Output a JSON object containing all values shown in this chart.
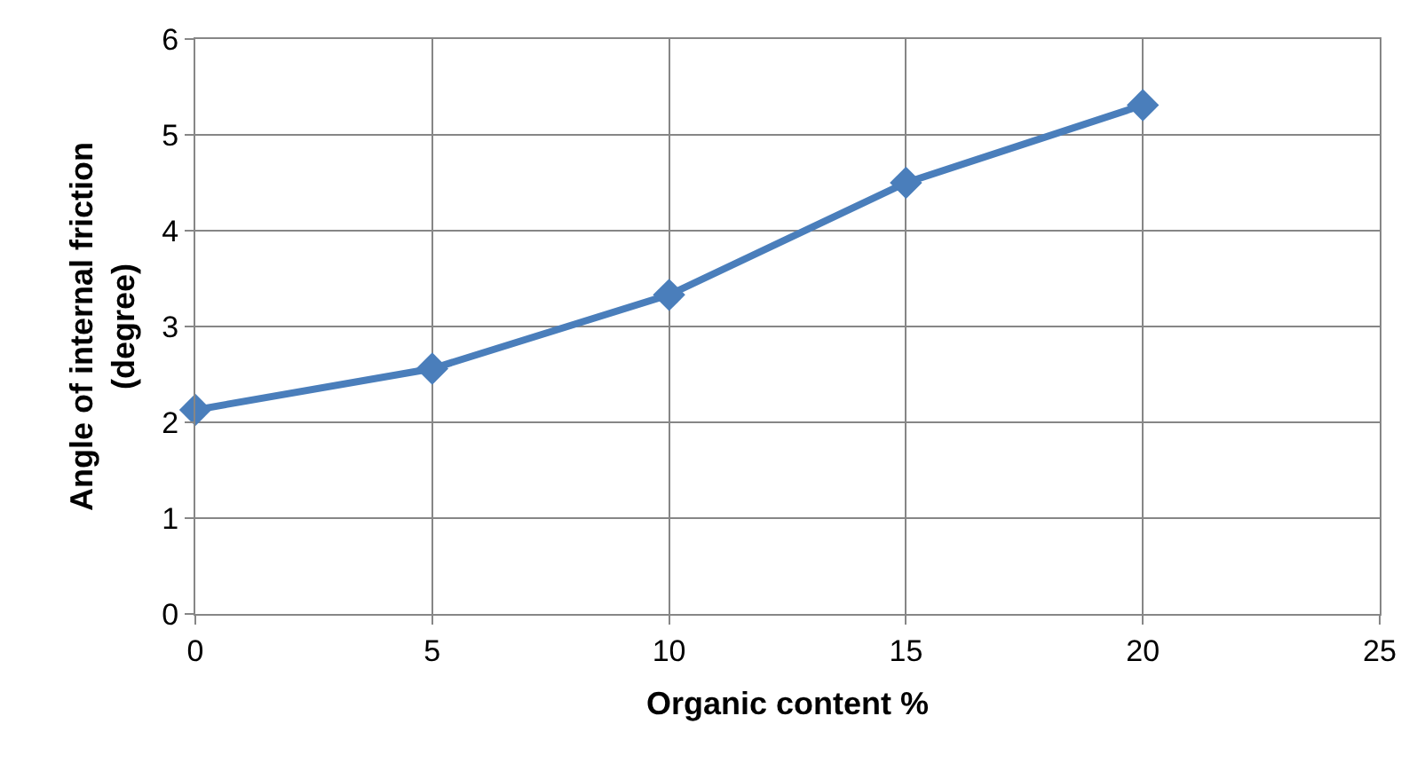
{
  "chart_data": {
    "type": "line",
    "xlabel": "Organic content %",
    "ylabel": "Angle of internal friction\n(degree)",
    "x": [
      0,
      5,
      10,
      15,
      20
    ],
    "series": [
      {
        "color": "#4a7ebb",
        "values": [
          2.13,
          2.56,
          3.33,
          4.5,
          5.31
        ]
      }
    ],
    "xlim": [
      0,
      25
    ],
    "xticks": [
      0,
      5,
      10,
      15,
      20,
      25
    ],
    "ylim": [
      0,
      6
    ],
    "yticks": [
      0,
      1,
      2,
      3,
      4,
      5,
      6
    ],
    "grid": true,
    "legend": false,
    "marker": "diamond",
    "line_style": "solid"
  }
}
